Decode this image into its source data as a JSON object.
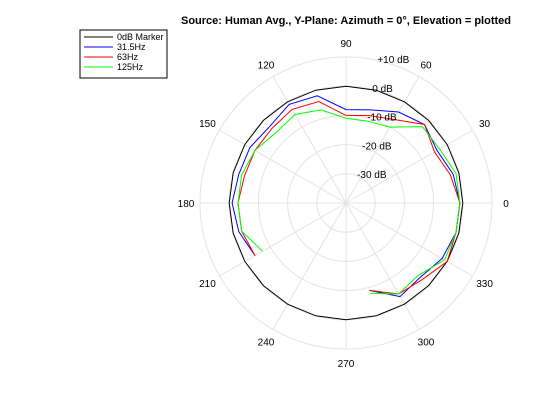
{
  "chart_data": {
    "type": "polar",
    "title": "Source: Human Avg., Y-Plane: Azimuth = 0°, Elevation = plotted",
    "angle_unit": "deg",
    "angle_ticks": [
      0,
      30,
      60,
      90,
      120,
      150,
      180,
      210,
      240,
      270,
      300,
      330
    ],
    "angle_tick_labels": [
      "0",
      "30",
      "60",
      "90",
      "120",
      "150",
      "180",
      "210",
      "240",
      "270",
      "300",
      "330"
    ],
    "radial_unit": "dB",
    "radial_range": [
      -40,
      10
    ],
    "radial_ticks": [
      10,
      0,
      -10,
      -20,
      -30
    ],
    "radial_tick_labels": [
      "+10 dB",
      "0 dB",
      "-10 dB",
      "-20 dB",
      "-30 dB"
    ],
    "grid": true,
    "legend_position": "top-left",
    "series": [
      {
        "name": "0dB Marker",
        "color": "#000000",
        "points": [
          [
            0,
            0
          ],
          [
            15,
            0
          ],
          [
            30,
            0
          ],
          [
            45,
            0
          ],
          [
            60,
            0
          ],
          [
            75,
            0
          ],
          [
            90,
            0
          ],
          [
            105,
            0
          ],
          [
            120,
            0
          ],
          [
            135,
            0
          ],
          [
            150,
            0
          ],
          [
            165,
            0
          ],
          [
            180,
            0
          ],
          [
            195,
            0
          ],
          [
            210,
            0
          ],
          [
            225,
            0
          ],
          [
            240,
            0
          ],
          [
            255,
            0
          ],
          [
            270,
            0
          ],
          [
            285,
            0
          ],
          [
            300,
            0
          ],
          [
            315,
            0
          ],
          [
            330,
            0
          ],
          [
            345,
            0
          ],
          [
            360,
            0
          ]
        ]
      },
      {
        "name": "31.5Hz",
        "color": "#0000ff",
        "points": [
          [
            0,
            -1
          ],
          [
            15,
            -2
          ],
          [
            30,
            -4
          ],
          [
            45,
            -2
          ],
          [
            60,
            -4
          ],
          [
            75,
            -7
          ],
          [
            90,
            -8
          ],
          [
            105,
            -2
          ],
          [
            120,
            -1
          ],
          [
            135,
            -3
          ],
          [
            150,
            -2
          ],
          [
            165,
            -2
          ],
          [
            180,
            -1
          ],
          [
            195,
            -2
          ],
          [
            210,
            -4
          ],
          [
            285,
            -9
          ],
          [
            300,
            -3
          ],
          [
            315,
            -4
          ],
          [
            330,
            -2
          ],
          [
            345,
            -1
          ],
          [
            360,
            -1
          ]
        ]
      },
      {
        "name": "63Hz",
        "color": "#ff0000",
        "points": [
          [
            0,
            -1
          ],
          [
            15,
            -3
          ],
          [
            30,
            -5
          ],
          [
            45,
            -2
          ],
          [
            60,
            -7
          ],
          [
            75,
            -9
          ],
          [
            90,
            -10
          ],
          [
            105,
            -4
          ],
          [
            120,
            -3
          ],
          [
            135,
            -4
          ],
          [
            150,
            -4
          ],
          [
            165,
            -4
          ],
          [
            180,
            -3
          ],
          [
            195,
            -3
          ],
          [
            210,
            -4
          ],
          [
            285,
            -9
          ],
          [
            300,
            -4
          ],
          [
            315,
            -3
          ],
          [
            330,
            0
          ],
          [
            345,
            -1
          ],
          [
            360,
            -1
          ]
        ]
      },
      {
        "name": "125Hz",
        "color": "#00ff00",
        "points": [
          [
            0,
            -1
          ],
          [
            15,
            -1
          ],
          [
            30,
            -3
          ],
          [
            45,
            -3
          ],
          [
            60,
            -10
          ],
          [
            75,
            -11
          ],
          [
            90,
            -11
          ],
          [
            105,
            -7
          ],
          [
            120,
            -5
          ],
          [
            135,
            -6
          ],
          [
            150,
            -4
          ],
          [
            165,
            -3
          ],
          [
            180,
            -3
          ],
          [
            195,
            -3
          ],
          [
            210,
            -7
          ],
          [
            285,
            -8
          ],
          [
            300,
            -4
          ],
          [
            315,
            -5
          ],
          [
            330,
            -1
          ],
          [
            345,
            -1
          ],
          [
            360,
            -1
          ]
        ]
      }
    ]
  }
}
